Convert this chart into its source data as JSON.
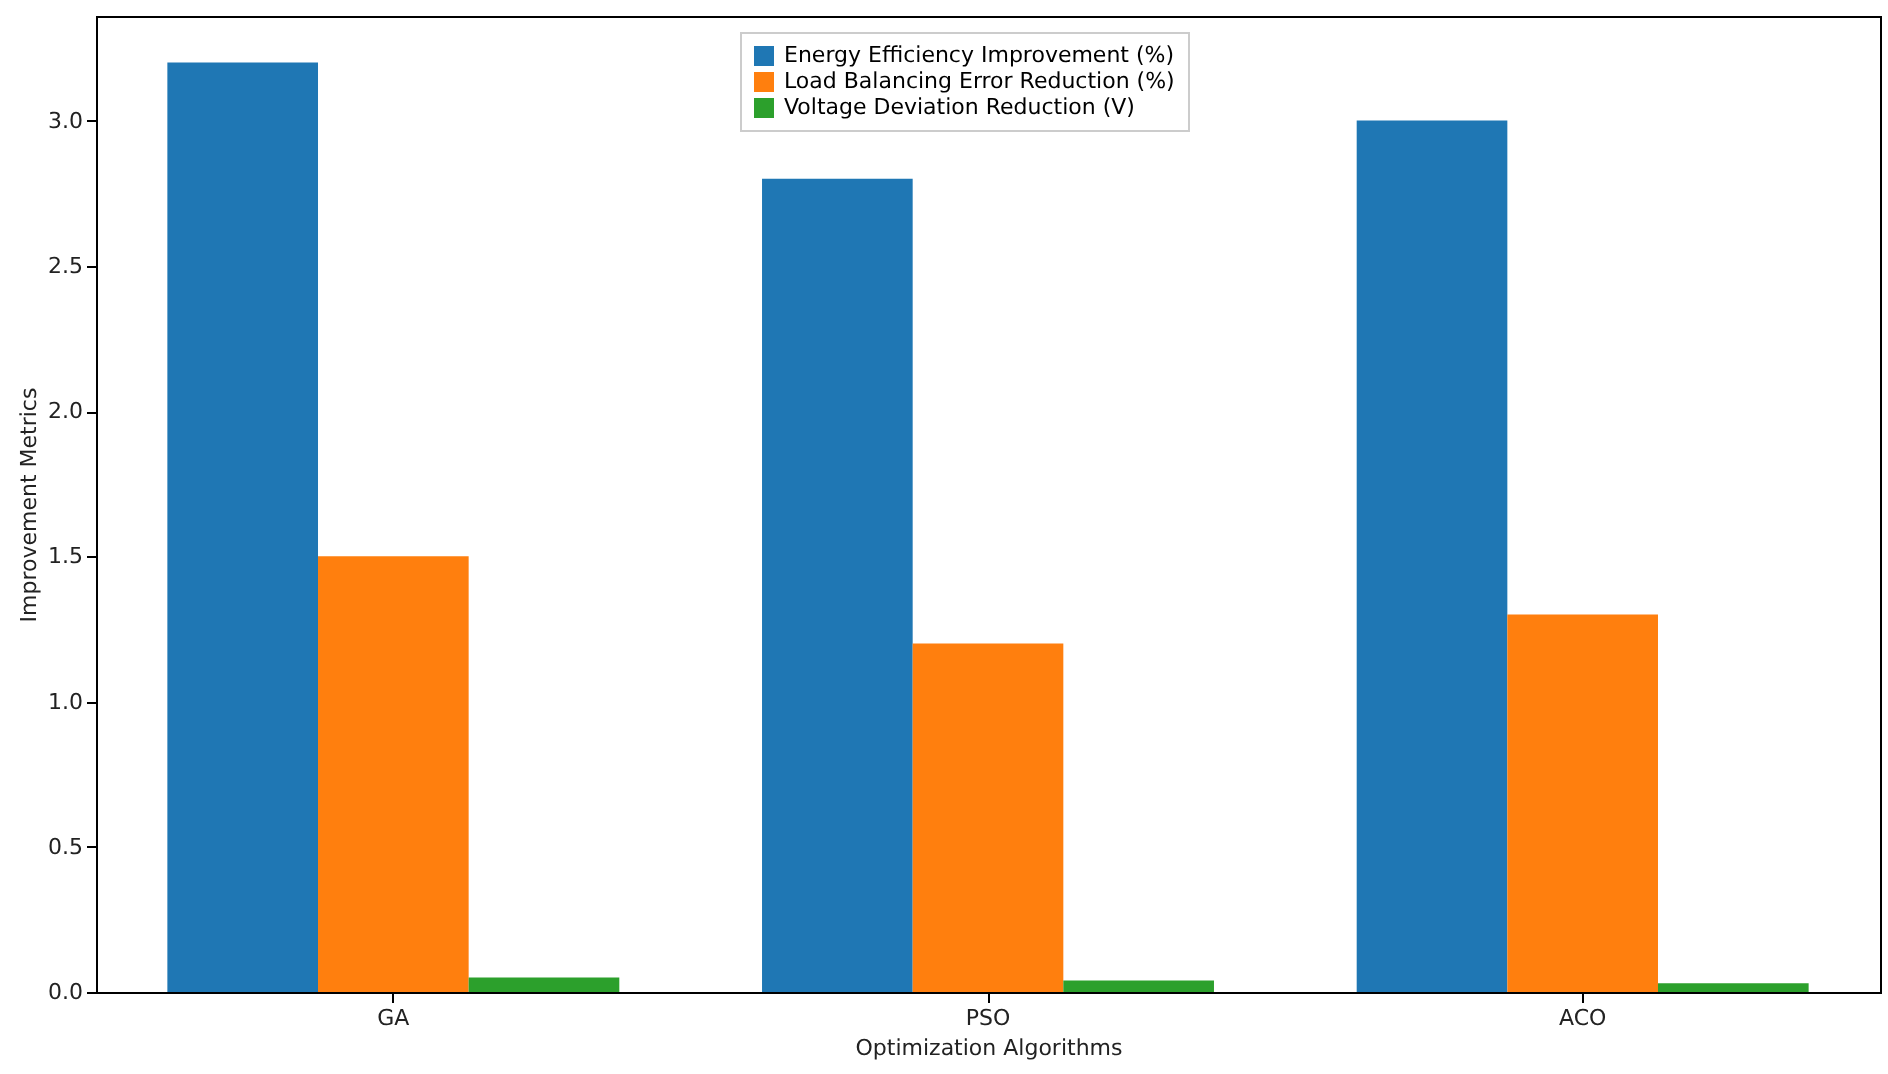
{
  "chart_data": {
    "type": "bar",
    "xlabel": "Optimization Algorithms",
    "ylabel": "Improvement Metrics",
    "categories": [
      "GA",
      "PSO",
      "ACO"
    ],
    "series": [
      {
        "name": "Energy Efficiency Improvement (%)",
        "color": "#1f77b4",
        "values": [
          3.2,
          2.8,
          3.0
        ]
      },
      {
        "name": "Load Balancing Error Reduction (%)",
        "color": "#ff7f0e",
        "values": [
          1.5,
          1.2,
          1.3
        ]
      },
      {
        "name": "Voltage Deviation Reduction (V)",
        "color": "#2ca02c",
        "values": [
          0.05,
          0.04,
          0.03
        ]
      }
    ],
    "ylim": [
      0,
      3.36
    ],
    "yticks": [
      {
        "value": 0,
        "label": "0.0"
      },
      0.5,
      {
        "value": 1,
        "label": "1.0"
      },
      1.5,
      {
        "value": 2,
        "label": "2.0"
      },
      2.5,
      {
        "value": 3,
        "label": "3.0"
      }
    ],
    "grid": false,
    "legend": "top"
  }
}
